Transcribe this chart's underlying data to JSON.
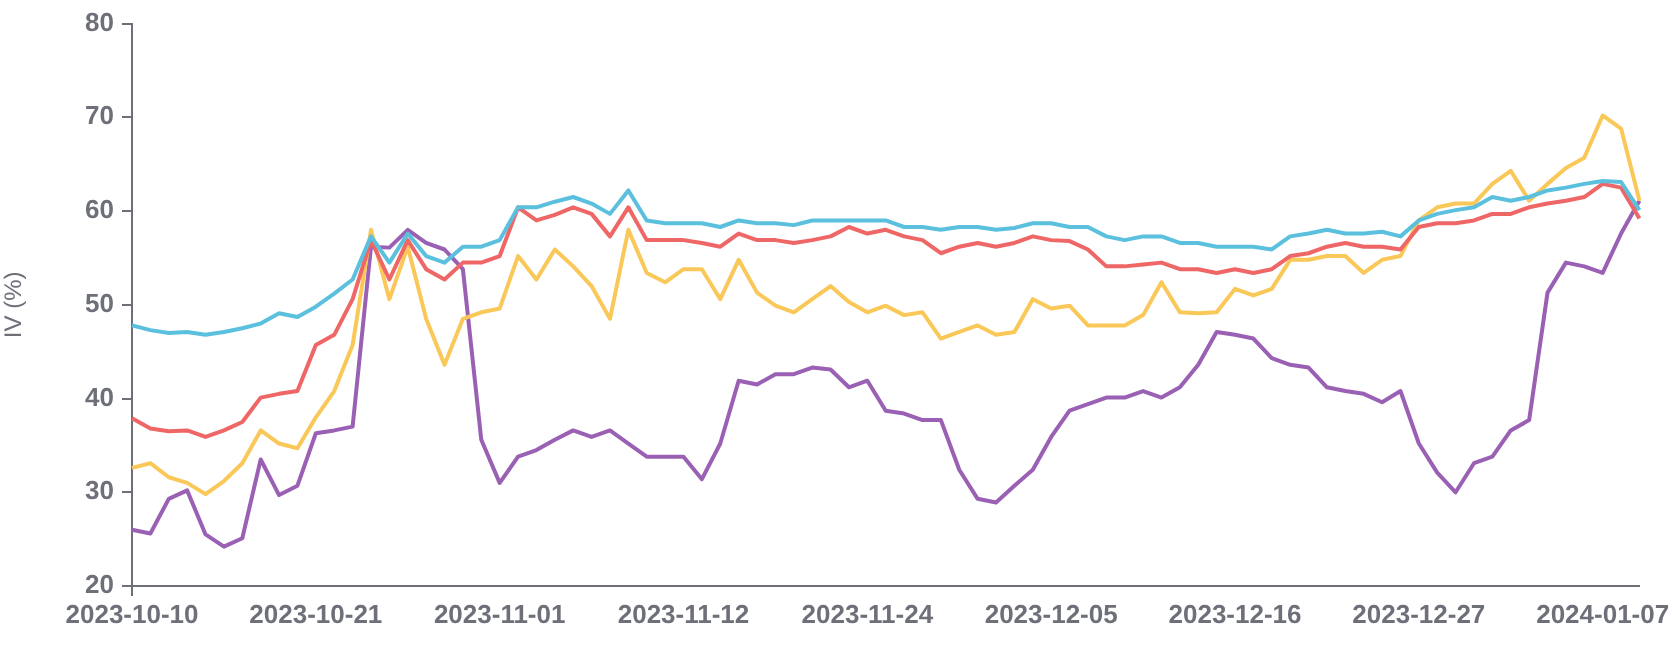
{
  "chart_data": {
    "type": "line",
    "ylabel": "IV (%)",
    "ylim": [
      20,
      80
    ],
    "yticks": [
      20,
      30,
      40,
      50,
      60,
      70,
      80
    ],
    "grid": false,
    "legend": false,
    "marker": "none",
    "line_style": "solid",
    "categories": [
      "2023-10-10",
      null,
      null,
      null,
      null,
      null,
      null,
      null,
      null,
      null,
      "2023-10-21",
      null,
      null,
      null,
      null,
      null,
      null,
      null,
      null,
      null,
      "2023-11-01",
      null,
      null,
      null,
      null,
      null,
      null,
      null,
      null,
      null,
      "2023-11-12",
      null,
      null,
      null,
      null,
      null,
      null,
      null,
      null,
      null,
      "2023-11-24",
      null,
      null,
      null,
      null,
      null,
      null,
      null,
      null,
      null,
      "2023-12-05",
      null,
      null,
      null,
      null,
      null,
      null,
      null,
      null,
      null,
      "2023-12-16",
      null,
      null,
      null,
      null,
      null,
      null,
      null,
      null,
      null,
      "2023-12-27",
      null,
      null,
      null,
      null,
      null,
      null,
      null,
      null,
      null,
      "2024-01-07",
      null,
      null
    ],
    "series": [
      {
        "color": "#5bc0de",
        "values": [
          47.8,
          47.3,
          47.0,
          47.1,
          46.8,
          47.1,
          47.5,
          48.0,
          49.1,
          48.7,
          49.8,
          51.2,
          52.7,
          57.3,
          54.5,
          57.6,
          55.2,
          54.5,
          56.2,
          56.2,
          56.9,
          60.4,
          60.4,
          61.0,
          61.5,
          60.8,
          59.7,
          62.2,
          59.0,
          58.7,
          58.7,
          58.7,
          58.3,
          59.0,
          58.7,
          58.7,
          58.5,
          59.0,
          59.0,
          59.0,
          59.0,
          59.0,
          58.3,
          58.3,
          58.0,
          58.3,
          58.3,
          58.0,
          58.2,
          58.7,
          58.7,
          58.3,
          58.3,
          57.3,
          56.9,
          57.3,
          57.3,
          56.6,
          56.6,
          56.2,
          56.2,
          56.2,
          55.9,
          57.3,
          57.6,
          58.0,
          57.6,
          57.6,
          57.8,
          57.3,
          59.0,
          59.7,
          60.1,
          60.4,
          61.5,
          61.1,
          61.5,
          62.2,
          62.5,
          62.9,
          63.2,
          63.1,
          60.1
        ]
      },
      {
        "color": "#ee6666",
        "values": [
          37.9,
          36.8,
          36.5,
          36.6,
          35.9,
          36.6,
          37.5,
          40.1,
          40.5,
          40.8,
          45.7,
          46.8,
          50.6,
          56.9,
          52.7,
          56.9,
          53.8,
          52.7,
          54.5,
          54.5,
          55.2,
          60.4,
          59.0,
          59.6,
          60.4,
          59.7,
          57.3,
          60.4,
          56.9,
          56.9,
          56.9,
          56.6,
          56.2,
          57.6,
          56.9,
          56.9,
          56.6,
          56.9,
          57.3,
          58.3,
          57.6,
          58.0,
          57.3,
          56.9,
          55.5,
          56.2,
          56.6,
          56.2,
          56.6,
          57.3,
          56.9,
          56.8,
          55.9,
          54.1,
          54.1,
          54.3,
          54.5,
          53.8,
          53.8,
          53.4,
          53.8,
          53.4,
          53.8,
          55.2,
          55.5,
          56.2,
          56.6,
          56.2,
          56.2,
          55.9,
          58.3,
          58.7,
          58.7,
          59.0,
          59.7,
          59.7,
          60.4,
          60.8,
          61.1,
          61.5,
          62.9,
          62.5,
          59.2
        ]
      },
      {
        "color": "#fac858",
        "values": [
          32.6,
          33.1,
          31.6,
          31.0,
          29.8,
          31.2,
          33.1,
          36.6,
          35.2,
          34.7,
          38.0,
          40.8,
          45.7,
          58.0,
          50.6,
          56.2,
          48.5,
          43.6,
          48.5,
          49.2,
          49.6,
          55.2,
          52.7,
          55.9,
          54.1,
          52.0,
          48.5,
          58.0,
          53.4,
          52.4,
          53.8,
          53.8,
          50.6,
          54.8,
          51.3,
          49.9,
          49.2,
          50.6,
          52.0,
          50.3,
          49.2,
          49.9,
          48.9,
          49.2,
          46.4,
          47.1,
          47.8,
          46.8,
          47.1,
          50.6,
          49.6,
          49.9,
          47.8,
          47.8,
          47.8,
          48.9,
          52.4,
          49.2,
          49.1,
          49.2,
          51.7,
          51.0,
          51.7,
          54.8,
          54.8,
          55.2,
          55.2,
          53.4,
          54.8,
          55.2,
          59.0,
          60.4,
          60.8,
          60.8,
          62.9,
          64.3,
          61.1,
          62.9,
          64.6,
          65.7,
          70.2,
          68.8,
          61.1
        ]
      },
      {
        "color": "#9a60b4",
        "values": [
          26.0,
          25.6,
          29.3,
          30.2,
          25.5,
          24.2,
          25.1,
          33.5,
          29.7,
          30.7,
          36.3,
          36.6,
          37.0,
          56.2,
          56.1,
          58.0,
          56.6,
          55.9,
          53.8,
          35.6,
          31.0,
          33.8,
          34.5,
          35.6,
          36.6,
          35.9,
          36.6,
          35.2,
          33.8,
          33.8,
          33.8,
          31.4,
          35.2,
          41.9,
          41.5,
          42.6,
          42.6,
          43.3,
          43.1,
          41.2,
          41.9,
          38.7,
          38.4,
          37.7,
          37.7,
          32.4,
          29.3,
          28.9,
          30.7,
          32.4,
          35.9,
          38.7,
          39.4,
          40.1,
          40.1,
          40.8,
          40.1,
          41.2,
          43.6,
          47.1,
          46.8,
          46.4,
          44.3,
          43.6,
          43.3,
          41.2,
          40.8,
          40.5,
          39.6,
          40.8,
          35.2,
          32.1,
          30.0,
          33.1,
          33.8,
          36.6,
          37.7,
          51.3,
          54.5,
          54.1,
          53.4,
          57.6,
          61.1
        ]
      }
    ]
  }
}
